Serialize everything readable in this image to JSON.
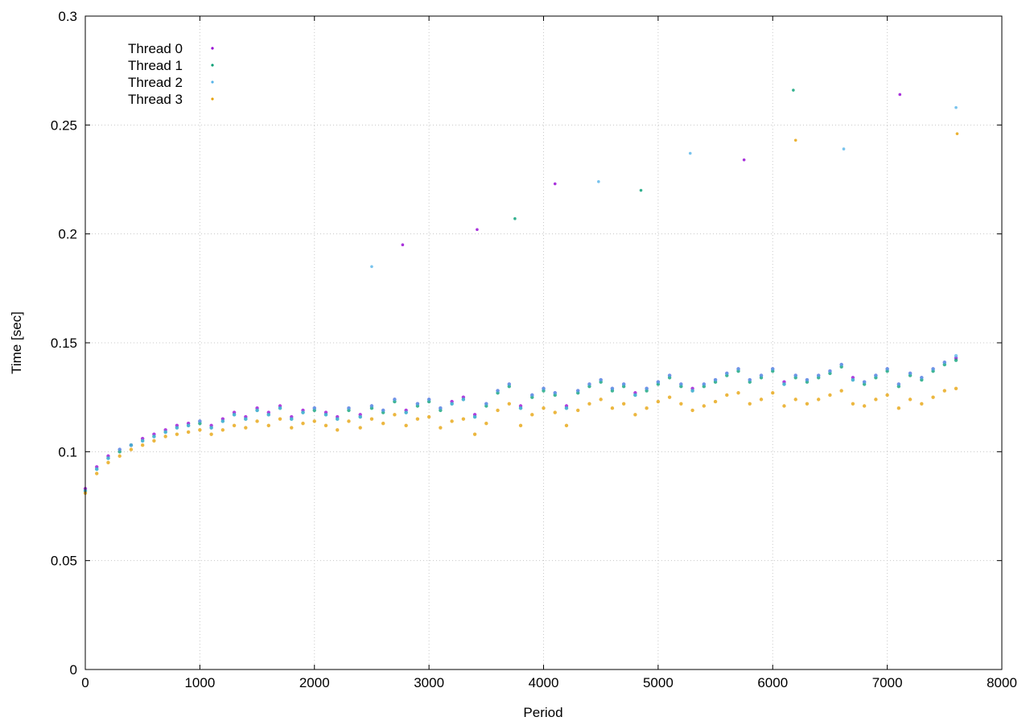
{
  "chart_data": {
    "type": "scatter",
    "xlabel": "Period",
    "ylabel": "Time [sec]",
    "xlim": [
      0,
      8000
    ],
    "ylim": [
      0,
      0.3
    ],
    "xticks": [
      "0",
      "1000",
      "2000",
      "3000",
      "4000",
      "5000",
      "6000",
      "7000",
      "8000"
    ],
    "yticks": [
      "0",
      "0.05",
      "0.1",
      "0.15",
      "0.2",
      "0.25",
      "0.3"
    ],
    "grid": true,
    "legend_position": "top-left",
    "marker": "dot",
    "sample_step": 100,
    "series": [
      {
        "name": "Thread 0",
        "color": "#9400d3",
        "marker": "dot",
        "x": [
          0,
          100,
          200,
          300,
          400,
          500,
          600,
          700,
          800,
          900,
          1000,
          1100,
          1200,
          1300,
          1400,
          1500,
          1600,
          1700,
          1800,
          1900,
          2000,
          2100,
          2200,
          2300,
          2400,
          2500,
          2600,
          2700,
          2800,
          2900,
          3000,
          3100,
          3200,
          3300,
          3400,
          3500,
          3600,
          3700,
          3800,
          3900,
          4000,
          4100,
          4200,
          4300,
          4400,
          4500,
          4600,
          4700,
          4800,
          4900,
          5000,
          5100,
          5200,
          5300,
          5400,
          5500,
          5600,
          5700,
          5800,
          5900,
          6000,
          6100,
          6200,
          6300,
          6400,
          6500,
          6600,
          6700,
          6800,
          6900,
          7000,
          7100,
          7200,
          7300,
          7400,
          7500,
          7600
        ],
        "y": [
          0.083,
          0.093,
          0.098,
          0.101,
          0.103,
          0.106,
          0.108,
          0.11,
          0.112,
          0.113,
          0.114,
          0.112,
          0.115,
          0.118,
          0.116,
          0.12,
          0.118,
          0.121,
          0.116,
          0.119,
          0.12,
          0.118,
          0.116,
          0.12,
          0.117,
          0.121,
          0.119,
          0.124,
          0.119,
          0.122,
          0.124,
          0.12,
          0.123,
          0.125,
          0.117,
          0.122,
          0.128,
          0.131,
          0.121,
          0.126,
          0.129,
          0.127,
          0.121,
          0.128,
          0.131,
          0.133,
          0.129,
          0.131,
          0.127,
          0.129,
          0.132,
          0.135,
          0.131,
          0.129,
          0.131,
          0.133,
          0.136,
          0.138,
          0.133,
          0.135,
          0.138,
          0.132,
          0.135,
          0.133,
          0.135,
          0.137,
          0.14,
          0.134,
          0.132,
          0.135,
          0.138,
          0.131,
          0.136,
          0.134,
          0.138,
          0.141,
          0.143
        ]
      },
      {
        "name": "Thread 1",
        "color": "#009e73",
        "marker": "dot",
        "x": [
          0,
          100,
          200,
          300,
          400,
          500,
          600,
          700,
          800,
          900,
          1000,
          1100,
          1200,
          1300,
          1400,
          1500,
          1600,
          1700,
          1800,
          1900,
          2000,
          2100,
          2200,
          2300,
          2400,
          2500,
          2600,
          2700,
          2800,
          2900,
          3000,
          3100,
          3200,
          3300,
          3400,
          3500,
          3600,
          3700,
          3800,
          3900,
          4000,
          4100,
          4200,
          4300,
          4400,
          4500,
          4600,
          4700,
          4800,
          4900,
          5000,
          5100,
          5200,
          5300,
          5400,
          5500,
          5600,
          5700,
          5800,
          5900,
          6000,
          6100,
          6200,
          6300,
          6400,
          6500,
          6600,
          6700,
          6800,
          6900,
          7000,
          7100,
          7200,
          7300,
          7400,
          7500,
          7600
        ],
        "y": [
          0.082,
          0.092,
          0.097,
          0.1,
          0.103,
          0.105,
          0.107,
          0.109,
          0.111,
          0.112,
          0.113,
          0.111,
          0.114,
          0.117,
          0.115,
          0.119,
          0.117,
          0.12,
          0.115,
          0.118,
          0.119,
          0.117,
          0.115,
          0.119,
          0.116,
          0.12,
          0.118,
          0.123,
          0.118,
          0.121,
          0.123,
          0.119,
          0.122,
          0.124,
          0.116,
          0.121,
          0.127,
          0.13,
          0.12,
          0.125,
          0.128,
          0.126,
          0.12,
          0.127,
          0.13,
          0.132,
          0.128,
          0.13,
          0.126,
          0.128,
          0.131,
          0.134,
          0.13,
          0.128,
          0.13,
          0.132,
          0.135,
          0.137,
          0.132,
          0.134,
          0.137,
          0.131,
          0.134,
          0.132,
          0.134,
          0.136,
          0.139,
          0.133,
          0.131,
          0.134,
          0.137,
          0.13,
          0.135,
          0.133,
          0.137,
          0.14,
          0.142
        ]
      },
      {
        "name": "Thread 2",
        "color": "#56b4e9",
        "marker": "dot",
        "x": [
          0,
          100,
          200,
          300,
          400,
          500,
          600,
          700,
          800,
          900,
          1000,
          1100,
          1200,
          1300,
          1400,
          1500,
          1600,
          1700,
          1800,
          1900,
          2000,
          2100,
          2200,
          2300,
          2400,
          2500,
          2600,
          2700,
          2800,
          2900,
          3000,
          3100,
          3200,
          3300,
          3400,
          3500,
          3600,
          3700,
          3800,
          3900,
          4000,
          4100,
          4200,
          4300,
          4400,
          4500,
          4600,
          4700,
          4800,
          4900,
          5000,
          5100,
          5200,
          5300,
          5400,
          5500,
          5600,
          5700,
          5800,
          5900,
          6000,
          6100,
          6200,
          6300,
          6400,
          6500,
          6600,
          6700,
          6800,
          6900,
          7000,
          7100,
          7200,
          7300,
          7400,
          7500,
          7600
        ],
        "y": [
          0.082,
          0.092,
          0.097,
          0.101,
          0.103,
          0.105,
          0.107,
          0.109,
          0.111,
          0.112,
          0.114,
          0.111,
          0.114,
          0.117,
          0.115,
          0.119,
          0.117,
          0.12,
          0.115,
          0.118,
          0.12,
          0.117,
          0.115,
          0.12,
          0.116,
          0.121,
          0.119,
          0.124,
          0.118,
          0.122,
          0.124,
          0.12,
          0.122,
          0.124,
          0.116,
          0.122,
          0.128,
          0.131,
          0.12,
          0.126,
          0.129,
          0.127,
          0.12,
          0.128,
          0.131,
          0.133,
          0.129,
          0.131,
          0.126,
          0.129,
          0.132,
          0.135,
          0.131,
          0.128,
          0.131,
          0.133,
          0.136,
          0.138,
          0.133,
          0.135,
          0.138,
          0.131,
          0.135,
          0.133,
          0.135,
          0.137,
          0.14,
          0.133,
          0.132,
          0.135,
          0.138,
          0.131,
          0.136,
          0.134,
          0.138,
          0.141,
          0.144
        ]
      },
      {
        "name": "Thread 3",
        "color": "#e69f00",
        "marker": "dot",
        "x": [
          0,
          100,
          200,
          300,
          400,
          500,
          600,
          700,
          800,
          900,
          1000,
          1100,
          1200,
          1300,
          1400,
          1500,
          1600,
          1700,
          1800,
          1900,
          2000,
          2100,
          2200,
          2300,
          2400,
          2500,
          2600,
          2700,
          2800,
          2900,
          3000,
          3100,
          3200,
          3300,
          3400,
          3500,
          3600,
          3700,
          3800,
          3900,
          4000,
          4100,
          4200,
          4300,
          4400,
          4500,
          4600,
          4700,
          4800,
          4900,
          5000,
          5100,
          5200,
          5300,
          5400,
          5500,
          5600,
          5700,
          5800,
          5900,
          6000,
          6100,
          6200,
          6300,
          6400,
          6500,
          6600,
          6700,
          6800,
          6900,
          7000,
          7100,
          7200,
          7300,
          7400,
          7500,
          7600
        ],
        "y": [
          0.081,
          0.09,
          0.095,
          0.098,
          0.101,
          0.103,
          0.105,
          0.107,
          0.108,
          0.109,
          0.11,
          0.108,
          0.11,
          0.112,
          0.111,
          0.114,
          0.112,
          0.115,
          0.111,
          0.113,
          0.114,
          0.112,
          0.11,
          0.114,
          0.111,
          0.115,
          0.113,
          0.117,
          0.112,
          0.115,
          0.116,
          0.111,
          0.114,
          0.115,
          0.108,
          0.113,
          0.119,
          0.122,
          0.112,
          0.117,
          0.12,
          0.118,
          0.112,
          0.119,
          0.122,
          0.124,
          0.12,
          0.122,
          0.117,
          0.12,
          0.123,
          0.125,
          0.122,
          0.119,
          0.121,
          0.123,
          0.126,
          0.127,
          0.122,
          0.124,
          0.127,
          0.121,
          0.124,
          0.122,
          0.124,
          0.126,
          0.128,
          0.122,
          0.121,
          0.124,
          0.126,
          0.12,
          0.124,
          0.122,
          0.125,
          0.128,
          0.129
        ]
      }
    ],
    "outliers": [
      {
        "series": "Thread 0",
        "x": 4100,
        "y": 0.223
      },
      {
        "series": "Thread 2",
        "x": 4480,
        "y": 0.224
      },
      {
        "series": "Thread 1",
        "x": 4850,
        "y": 0.22
      },
      {
        "series": "Thread 2",
        "x": 5280,
        "y": 0.237
      },
      {
        "series": "Thread 0",
        "x": 5750,
        "y": 0.234
      },
      {
        "series": "Thread 1",
        "x": 6180,
        "y": 0.266
      },
      {
        "series": "Thread 3",
        "x": 6200,
        "y": 0.243
      },
      {
        "series": "Thread 2",
        "x": 6620,
        "y": 0.239
      },
      {
        "series": "Thread 0",
        "x": 7110,
        "y": 0.264
      },
      {
        "series": "Thread 2",
        "x": 7600,
        "y": 0.258
      },
      {
        "series": "Thread 3",
        "x": 7610,
        "y": 0.246
      },
      {
        "series": "Thread 1",
        "x": 3750,
        "y": 0.207
      },
      {
        "series": "Thread 0",
        "x": 3420,
        "y": 0.202
      },
      {
        "series": "Thread 2",
        "x": 2500,
        "y": 0.185
      },
      {
        "series": "Thread 0",
        "x": 2770,
        "y": 0.195
      }
    ]
  }
}
